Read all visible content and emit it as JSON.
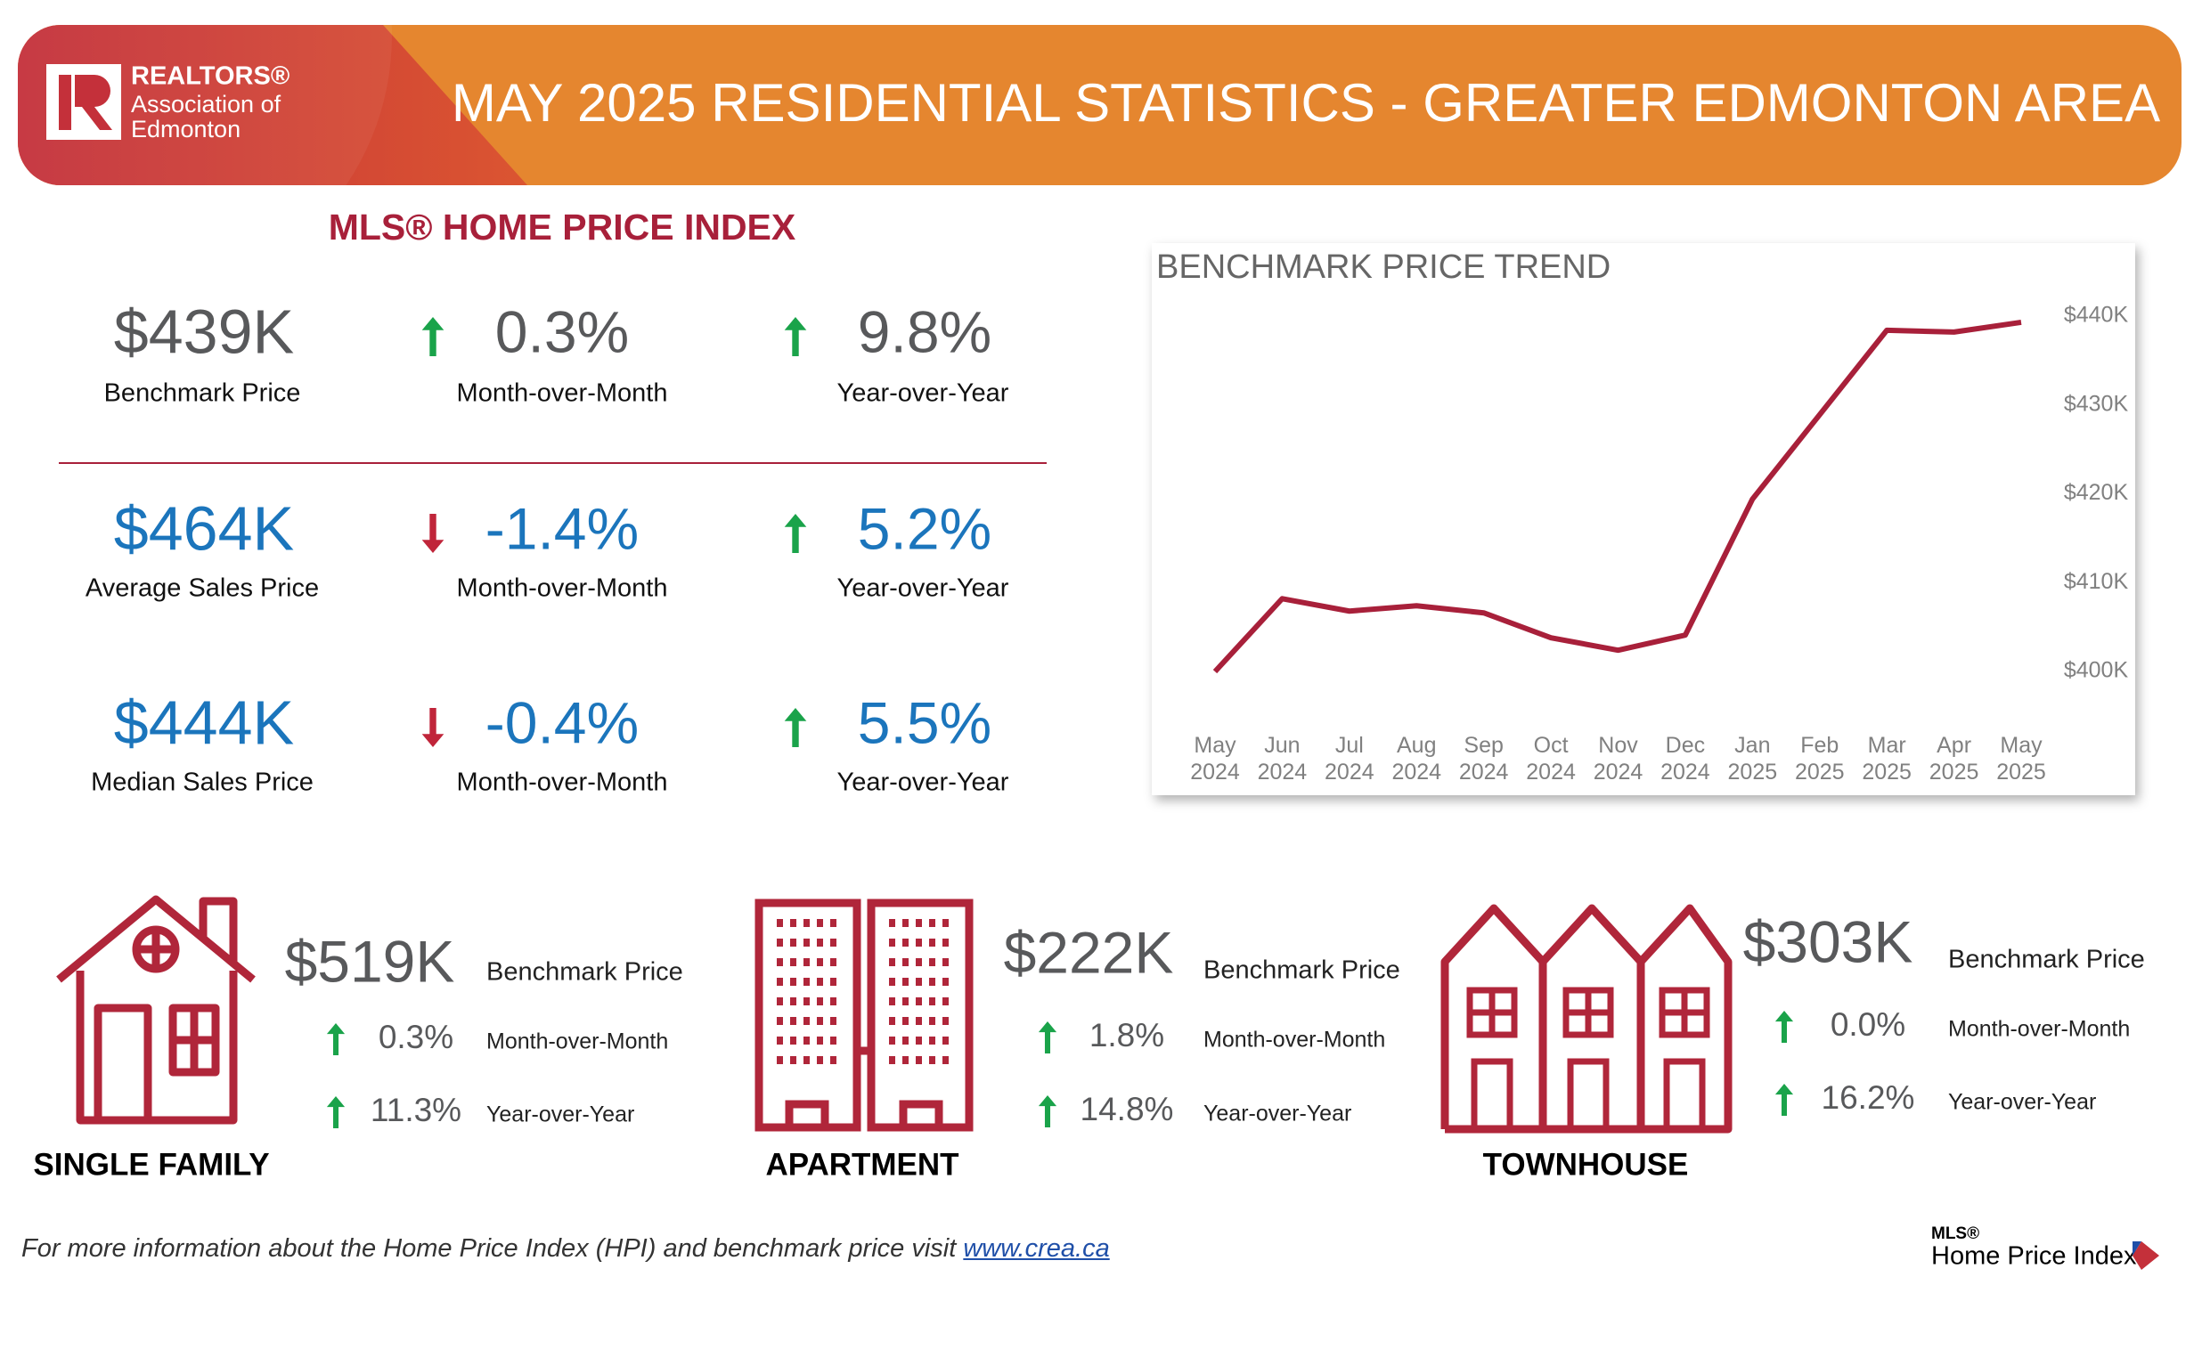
{
  "header": {
    "org": [
      "REALTORS®",
      "Association of",
      "Edmonton"
    ],
    "title": "MAY 2025 RESIDENTIAL STATISTICS - GREATER EDMONTON AREA"
  },
  "hpi": {
    "heading": "MLS® HOME PRICE INDEX",
    "rows": [
      {
        "value": "$439K",
        "label": "Benchmark Price",
        "mom": "0.3%",
        "mom_label": "Month-over-Month",
        "yoy": "9.8%",
        "yoy_label": "Year-over-Year"
      },
      {
        "value": "$464K",
        "label": "Average Sales Price",
        "mom": "-1.4%",
        "mom_label": "Month-over-Month",
        "yoy": "5.2%",
        "yoy_label": "Year-over-Year"
      },
      {
        "value": "$444K",
        "label": "Median Sales Price",
        "mom": "-0.4%",
        "mom_label": "Month-over-Month",
        "yoy": "5.5%",
        "yoy_label": "Year-over-Year"
      }
    ]
  },
  "chart_data": {
    "type": "line",
    "title": "BENCHMARK PRICE TREND",
    "categories": [
      "May 2024",
      "Jun 2024",
      "Jul 2024",
      "Aug 2024",
      "Sep 2024",
      "Oct 2024",
      "Nov 2024",
      "Dec 2024",
      "Jan 2025",
      "Feb 2025",
      "Mar 2025",
      "Apr 2025",
      "May 2025"
    ],
    "values": [
      400.0,
      408.2,
      406.8,
      407.4,
      406.6,
      403.8,
      402.4,
      404.1,
      419.4,
      428.9,
      438.4,
      438.2,
      439.3
    ],
    "color": "#a8203a",
    "ylim": [
      395,
      443
    ],
    "yticks": [
      {
        "value": 400,
        "label": "$400K"
      },
      {
        "value": 410,
        "label": "$410K"
      },
      {
        "value": 420,
        "label": "$420K"
      },
      {
        "value": 430,
        "label": "$430K"
      },
      {
        "value": 440,
        "label": "$440K"
      }
    ]
  },
  "property_types": [
    {
      "name": "SINGLE FAMILY",
      "value": "$519K",
      "label": "Benchmark Price",
      "mom": "0.3%",
      "mom_label": "Month-over-Month",
      "yoy": "11.3%",
      "yoy_label": "Year-over-Year"
    },
    {
      "name": "APARTMENT",
      "value": "$222K",
      "label": "Benchmark Price",
      "mom": "1.8%",
      "mom_label": "Month-over-Month",
      "yoy": "14.8%",
      "yoy_label": "Year-over-Year"
    },
    {
      "name": "TOWNHOUSE",
      "value": "$303K",
      "label": "Benchmark Price",
      "mom": "0.0%",
      "mom_label": "Month-over-Month",
      "yoy": "16.2%",
      "yoy_label": "Year-over-Year"
    }
  ],
  "footer": {
    "text": "For more information about the Home Price Index (HPI) and benchmark price visit ",
    "link": "www.crea.ca",
    "logo": [
      "MLS®",
      "Home Price Index"
    ]
  }
}
